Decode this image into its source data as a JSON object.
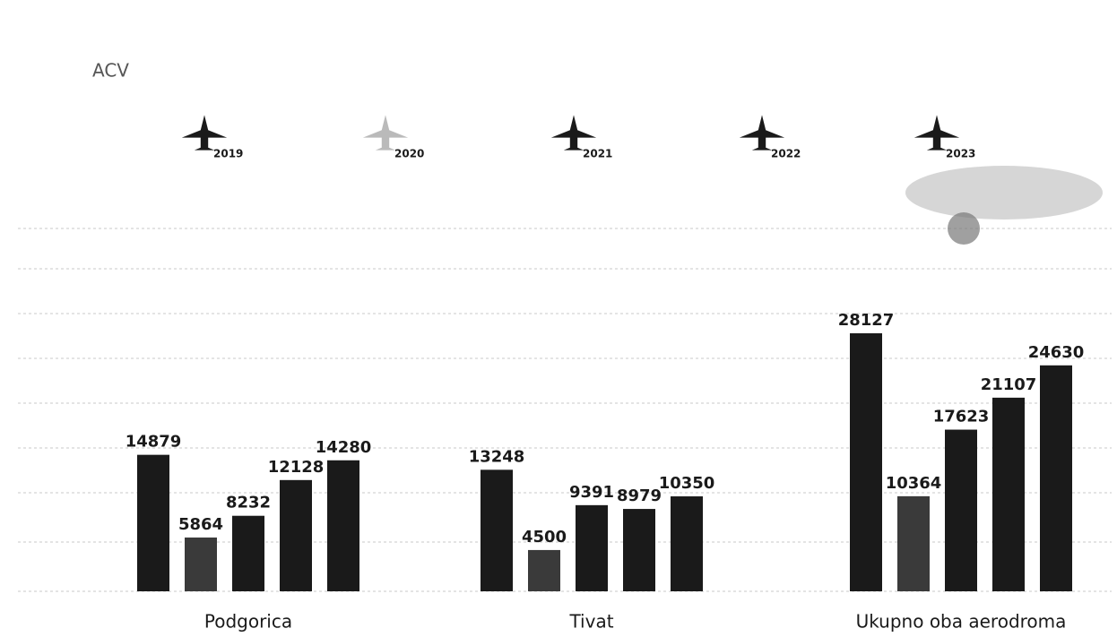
{
  "chart_data": {
    "type": "bar",
    "subtitle": "ACV",
    "categories": [
      "Podgorica",
      "Tivat",
      "Ukupno oba aerodroma"
    ],
    "series": [
      {
        "name": "2019",
        "color": "#1a1a1a",
        "values": [
          14879,
          13248,
          28127
        ]
      },
      {
        "name": "2020",
        "color": "#3a3a3a",
        "values": [
          5864,
          4500,
          10364
        ]
      },
      {
        "name": "2021",
        "color": "#1a1a1a",
        "values": [
          8232,
          9391,
          17623
        ]
      },
      {
        "name": "2022",
        "color": "#1a1a1a",
        "values": [
          12128,
          8979,
          21107
        ]
      },
      {
        "name": "2023",
        "color": "#1a1a1a",
        "values": [
          14280,
          10350,
          24630
        ]
      }
    ]
  }
}
